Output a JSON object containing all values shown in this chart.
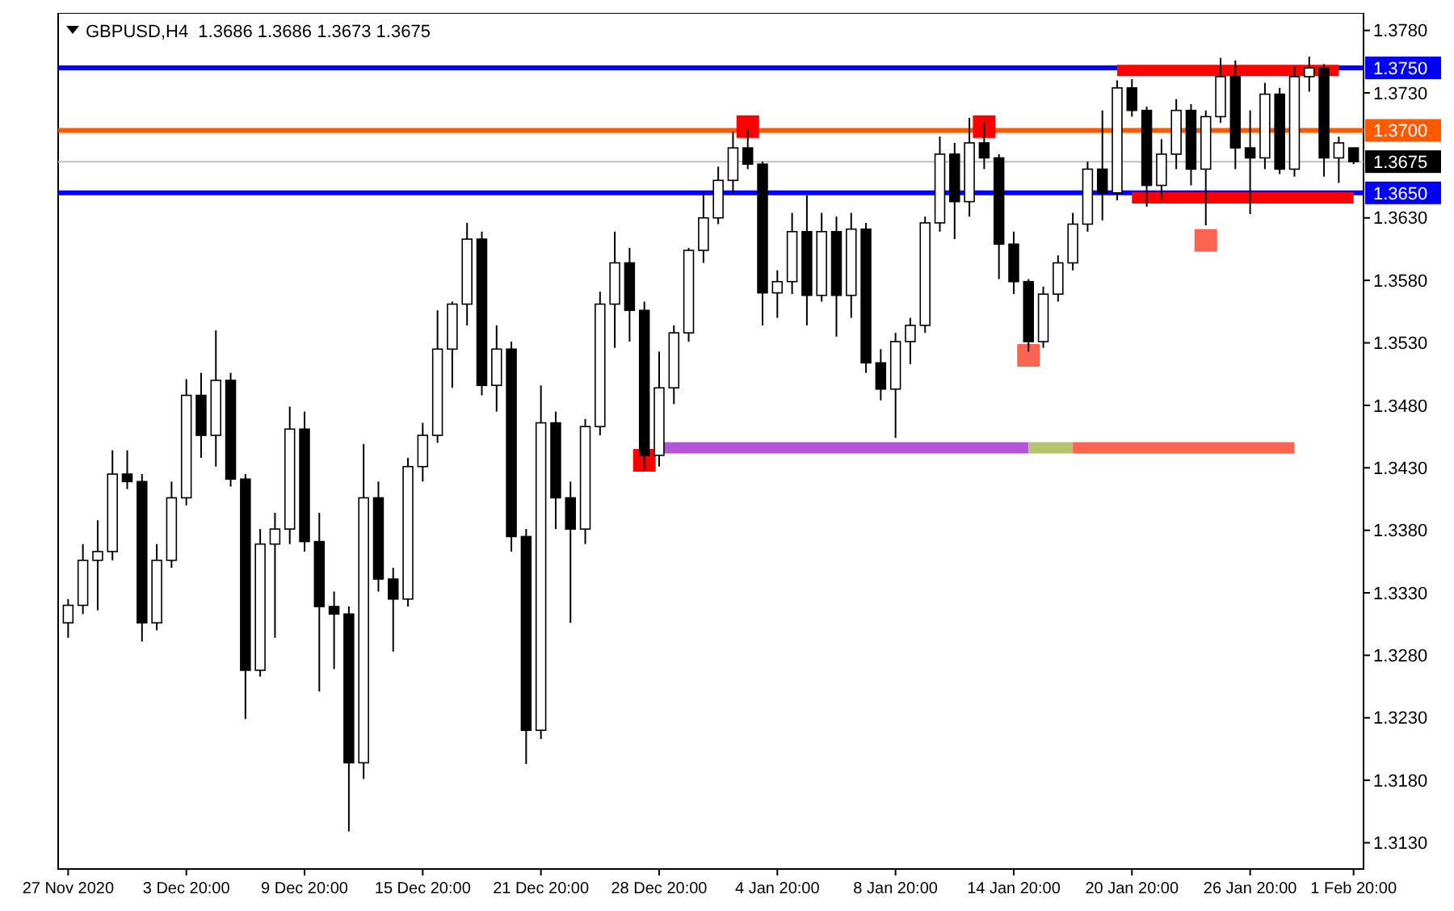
{
  "chart_data": {
    "type": "candlestick",
    "title": "GBPUSD,H4  1.3686 1.3686 1.3673 1.3675",
    "color": "#000000",
    "categories": [
      "27 Nov 2020",
      null,
      null,
      null,
      null,
      null,
      null,
      null,
      "3 Dec 20:00",
      null,
      null,
      null,
      null,
      null,
      null,
      null,
      "9 Dec 20:00",
      null,
      null,
      null,
      null,
      null,
      null,
      null,
      "15 Dec 20:00",
      null,
      null,
      null,
      null,
      null,
      null,
      null,
      "21 Dec 20:00",
      null,
      null,
      null,
      null,
      null,
      null,
      null,
      "28 Dec 20:00",
      null,
      null,
      null,
      null,
      null,
      null,
      null,
      "4 Jan 20:00",
      null,
      null,
      null,
      null,
      null,
      null,
      null,
      "8 Jan 20:00",
      null,
      null,
      null,
      null,
      null,
      null,
      null,
      "14 Jan 20:00",
      null,
      null,
      null,
      null,
      null,
      null,
      null,
      "20 Jan 20:00",
      null,
      null,
      null,
      null,
      null,
      null,
      null,
      "26 Jan 20:00",
      null,
      null,
      null,
      null,
      null,
      null,
      "1 Feb 20:00"
    ],
    "ohlc": [
      [
        1.3306,
        1.3325,
        1.3294,
        1.332
      ],
      [
        1.332,
        1.3369,
        1.3313,
        1.3356
      ],
      [
        1.3356,
        1.3388,
        1.3316,
        1.3363
      ],
      [
        1.3363,
        1.3444,
        1.3356,
        1.3425
      ],
      [
        1.3425,
        1.3444,
        1.3413,
        1.3419
      ],
      [
        1.3419,
        1.3425,
        1.3291,
        1.3306
      ],
      [
        1.3306,
        1.3369,
        1.33,
        1.3356
      ],
      [
        1.3356,
        1.3419,
        1.335,
        1.3406
      ],
      [
        1.3406,
        1.3501,
        1.34,
        1.3488
      ],
      [
        1.3488,
        1.3506,
        1.3438,
        1.3456
      ],
      [
        1.3456,
        1.354,
        1.3431,
        1.35
      ],
      [
        1.35,
        1.3506,
        1.3415,
        1.3421
      ],
      [
        1.3421,
        1.3425,
        1.3229,
        1.3268
      ],
      [
        1.3268,
        1.3381,
        1.3263,
        1.3369
      ],
      [
        1.3369,
        1.3394,
        1.3294,
        1.3381
      ],
      [
        1.3381,
        1.3479,
        1.3369,
        1.3461
      ],
      [
        1.3461,
        1.3475,
        1.3363,
        1.3371
      ],
      [
        1.3371,
        1.3394,
        1.3251,
        1.3319
      ],
      [
        1.3319,
        1.3331,
        1.3269,
        1.3313
      ],
      [
        1.3313,
        1.3319,
        1.3139,
        1.3194
      ],
      [
        1.3194,
        1.3449,
        1.3181,
        1.3406
      ],
      [
        1.3406,
        1.3419,
        1.3331,
        1.3341
      ],
      [
        1.3341,
        1.335,
        1.3283,
        1.3325
      ],
      [
        1.3325,
        1.3438,
        1.3319,
        1.3431
      ],
      [
        1.3431,
        1.3466,
        1.3419,
        1.3456
      ],
      [
        1.3456,
        1.3556,
        1.345,
        1.3525
      ],
      [
        1.3525,
        1.3563,
        1.3494,
        1.3561
      ],
      [
        1.3561,
        1.3626,
        1.3544,
        1.3613
      ],
      [
        1.3613,
        1.3619,
        1.3488,
        1.3496
      ],
      [
        1.3496,
        1.3544,
        1.3475,
        1.3525
      ],
      [
        1.3525,
        1.3531,
        1.3363,
        1.3375
      ],
      [
        1.3375,
        1.3381,
        1.3193,
        1.322
      ],
      [
        1.322,
        1.3496,
        1.3213,
        1.3466
      ],
      [
        1.3466,
        1.3475,
        1.3381,
        1.3406
      ],
      [
        1.3406,
        1.3419,
        1.3306,
        1.3381
      ],
      [
        1.3381,
        1.3469,
        1.3369,
        1.3463
      ],
      [
        1.3463,
        1.3571,
        1.3456,
        1.3561
      ],
      [
        1.3561,
        1.3619,
        1.3526,
        1.3594
      ],
      [
        1.3594,
        1.3606,
        1.3531,
        1.3556
      ],
      [
        1.3556,
        1.3563,
        1.3428,
        1.344
      ],
      [
        1.344,
        1.3523,
        1.3431,
        1.3494
      ],
      [
        1.3494,
        1.3544,
        1.3481,
        1.3538
      ],
      [
        1.3538,
        1.3606,
        1.3531,
        1.3604
      ],
      [
        1.3604,
        1.3651,
        1.3594,
        1.363
      ],
      [
        1.363,
        1.3671,
        1.3625,
        1.366
      ],
      [
        1.366,
        1.3699,
        1.365,
        1.3686
      ],
      [
        1.3686,
        1.3701,
        1.3669,
        1.3673
      ],
      [
        1.3673,
        1.3675,
        1.3544,
        1.357
      ],
      [
        1.357,
        1.3588,
        1.355,
        1.3579
      ],
      [
        1.3579,
        1.3634,
        1.3569,
        1.3619
      ],
      [
        1.3619,
        1.3648,
        1.3544,
        1.3568
      ],
      [
        1.3568,
        1.3634,
        1.3563,
        1.3619
      ],
      [
        1.3619,
        1.3631,
        1.3535,
        1.3568
      ],
      [
        1.3568,
        1.3634,
        1.355,
        1.3621
      ],
      [
        1.3621,
        1.3626,
        1.3506,
        1.3514
      ],
      [
        1.3514,
        1.3525,
        1.3484,
        1.3493
      ],
      [
        1.3493,
        1.3538,
        1.3454,
        1.3531
      ],
      [
        1.3531,
        1.355,
        1.3513,
        1.3544
      ],
      [
        1.3544,
        1.3631,
        1.3538,
        1.3626
      ],
      [
        1.3626,
        1.3695,
        1.3619,
        1.3681
      ],
      [
        1.3681,
        1.369,
        1.3613,
        1.3643
      ],
      [
        1.3643,
        1.371,
        1.3631,
        1.369
      ],
      [
        1.369,
        1.3706,
        1.3669,
        1.3678
      ],
      [
        1.3678,
        1.3681,
        1.3581,
        1.3609
      ],
      [
        1.3609,
        1.3619,
        1.3569,
        1.3579
      ],
      [
        1.3579,
        1.3581,
        1.3523,
        1.3531
      ],
      [
        1.3531,
        1.3575,
        1.3526,
        1.3569
      ],
      [
        1.3569,
        1.36,
        1.3563,
        1.3594
      ],
      [
        1.3594,
        1.3634,
        1.3588,
        1.3625
      ],
      [
        1.3625,
        1.3675,
        1.3619,
        1.3669
      ],
      [
        1.3669,
        1.3716,
        1.3628,
        1.365
      ],
      [
        1.365,
        1.374,
        1.3644,
        1.3734
      ],
      [
        1.3734,
        1.3741,
        1.3711,
        1.3716
      ],
      [
        1.3716,
        1.3719,
        1.3639,
        1.3656
      ],
      [
        1.3656,
        1.3693,
        1.3644,
        1.3681
      ],
      [
        1.3681,
        1.3725,
        1.3669,
        1.3716
      ],
      [
        1.3716,
        1.3721,
        1.3656,
        1.3669
      ],
      [
        1.3669,
        1.3716,
        1.3624,
        1.3711
      ],
      [
        1.3711,
        1.3758,
        1.3706,
        1.3743
      ],
      [
        1.3743,
        1.3756,
        1.3669,
        1.3686
      ],
      [
        1.3686,
        1.3716,
        1.3633,
        1.3678
      ],
      [
        1.3678,
        1.3738,
        1.3669,
        1.3729
      ],
      [
        1.3729,
        1.3734,
        1.3665,
        1.3669
      ],
      [
        1.3669,
        1.3751,
        1.3663,
        1.3743
      ],
      [
        1.3743,
        1.3759,
        1.3731,
        1.375
      ],
      [
        1.375,
        1.3753,
        1.3663,
        1.3678
      ],
      [
        1.3678,
        1.3695,
        1.3658,
        1.369
      ],
      [
        1.3686,
        1.3686,
        1.3673,
        1.3675
      ]
    ],
    "series": [
      {
        "type": "line",
        "color": "#ff0000",
        "values": [
          null,
          null,
          null,
          null,
          null,
          null,
          null,
          null,
          null,
          null,
          null,
          null,
          null,
          null,
          null,
          null,
          null,
          null,
          null,
          null,
          null,
          null,
          null,
          null,
          null,
          null,
          null,
          null,
          null,
          null,
          null,
          null,
          null,
          null,
          null,
          null,
          null,
          null,
          null,
          null,
          null,
          null,
          null,
          null,
          null,
          null,
          null,
          null,
          null,
          null,
          null,
          null,
          null,
          null,
          null,
          null,
          null,
          null,
          null,
          null,
          null,
          null,
          null,
          null,
          null,
          null,
          null,
          null,
          null,
          null,
          null,
          1.3748,
          1.3748,
          1.3748,
          1.3748,
          1.3748,
          1.3748,
          1.3748,
          1.3748,
          1.3748,
          1.3748,
          1.3748,
          1.3748,
          1.3748,
          1.3748,
          1.3748,
          1.3748,
          null
        ]
      },
      {
        "type": "line",
        "color": "#ff0000",
        "values": [
          null,
          null,
          null,
          null,
          null,
          null,
          null,
          null,
          null,
          null,
          null,
          null,
          null,
          null,
          null,
          null,
          null,
          null,
          null,
          null,
          null,
          null,
          null,
          null,
          null,
          null,
          null,
          null,
          null,
          null,
          null,
          null,
          null,
          null,
          null,
          null,
          null,
          null,
          null,
          null,
          null,
          null,
          null,
          null,
          null,
          null,
          null,
          null,
          null,
          null,
          null,
          null,
          null,
          null,
          null,
          null,
          null,
          null,
          null,
          null,
          null,
          null,
          null,
          null,
          null,
          null,
          null,
          null,
          null,
          null,
          null,
          null,
          1.3646,
          1.3646,
          1.3646,
          1.3646,
          1.3646,
          1.3646,
          1.3646,
          1.3646,
          1.3646,
          1.3646,
          1.3646,
          1.3646,
          1.3646,
          1.3646,
          1.3646,
          1.3646
        ]
      },
      {
        "type": "line",
        "color": "#b455d8",
        "values": [
          null,
          null,
          null,
          null,
          null,
          null,
          null,
          null,
          null,
          null,
          null,
          null,
          null,
          null,
          null,
          null,
          null,
          null,
          null,
          null,
          null,
          null,
          null,
          null,
          null,
          null,
          null,
          null,
          null,
          null,
          null,
          null,
          null,
          null,
          null,
          null,
          null,
          null,
          null,
          null,
          1.3446,
          1.3446,
          1.3446,
          1.3446,
          1.3446,
          1.3446,
          1.3446,
          1.3446,
          1.3446,
          1.3446,
          1.3446,
          1.3446,
          1.3446,
          1.3446,
          1.3446,
          1.3446,
          1.3446,
          1.3446,
          1.3446,
          1.3446,
          1.3446,
          1.3446,
          1.3446,
          1.3446,
          1.3446,
          1.3446,
          null,
          null,
          null,
          null,
          null,
          null,
          null,
          null,
          null,
          null,
          null,
          null,
          null,
          null,
          null,
          null,
          null,
          null,
          null,
          null,
          null,
          null
        ]
      },
      {
        "type": "line",
        "color": "#b4c46e",
        "values": [
          null,
          null,
          null,
          null,
          null,
          null,
          null,
          null,
          null,
          null,
          null,
          null,
          null,
          null,
          null,
          null,
          null,
          null,
          null,
          null,
          null,
          null,
          null,
          null,
          null,
          null,
          null,
          null,
          null,
          null,
          null,
          null,
          null,
          null,
          null,
          null,
          null,
          null,
          null,
          null,
          null,
          null,
          null,
          null,
          null,
          null,
          null,
          null,
          null,
          null,
          null,
          null,
          null,
          null,
          null,
          null,
          null,
          null,
          null,
          null,
          null,
          null,
          null,
          null,
          null,
          1.3446,
          1.3446,
          1.3446,
          1.3446,
          null,
          null,
          null,
          null,
          null,
          null,
          null,
          null,
          null,
          null,
          null,
          null,
          null,
          null,
          null,
          null,
          null,
          null,
          null
        ]
      },
      {
        "type": "line",
        "color": "#fa6450",
        "values": [
          null,
          null,
          null,
          null,
          null,
          null,
          null,
          null,
          null,
          null,
          null,
          null,
          null,
          null,
          null,
          null,
          null,
          null,
          null,
          null,
          null,
          null,
          null,
          null,
          null,
          null,
          null,
          null,
          null,
          null,
          null,
          null,
          null,
          null,
          null,
          null,
          null,
          null,
          null,
          null,
          null,
          null,
          null,
          null,
          null,
          null,
          null,
          null,
          null,
          null,
          null,
          null,
          null,
          null,
          null,
          null,
          null,
          null,
          null,
          null,
          null,
          null,
          null,
          null,
          null,
          null,
          null,
          null,
          1.3446,
          1.3446,
          1.3446,
          1.3446,
          1.3446,
          1.3446,
          1.3446,
          1.3446,
          1.3446,
          1.3446,
          1.3446,
          1.3446,
          1.3446,
          1.3446,
          1.3446,
          1.3446,
          null,
          null,
          null,
          null
        ]
      },
      {
        "type": "scatter",
        "marker": "square",
        "color": "#ff0000",
        "values": [
          null,
          null,
          null,
          null,
          null,
          null,
          null,
          null,
          null,
          null,
          null,
          null,
          null,
          null,
          null,
          null,
          null,
          null,
          null,
          null,
          null,
          null,
          null,
          null,
          null,
          null,
          null,
          null,
          null,
          null,
          null,
          null,
          null,
          null,
          null,
          null,
          null,
          null,
          null,
          1.3436,
          null,
          null,
          null,
          null,
          null,
          null,
          1.3703,
          null,
          null,
          null,
          null,
          null,
          null,
          null,
          null,
          null,
          null,
          null,
          null,
          null,
          null,
          null,
          1.3703,
          null,
          null,
          null,
          null,
          null,
          null,
          null,
          null,
          null,
          null,
          null,
          null,
          null,
          null,
          null,
          null,
          null,
          null,
          null,
          null,
          null,
          null,
          null,
          null,
          null
        ]
      },
      {
        "type": "scatter",
        "marker": "square",
        "color": "#fa6450",
        "values": [
          null,
          null,
          null,
          null,
          null,
          null,
          null,
          null,
          null,
          null,
          null,
          null,
          null,
          null,
          null,
          null,
          null,
          null,
          null,
          null,
          null,
          null,
          null,
          null,
          null,
          null,
          null,
          null,
          null,
          null,
          null,
          null,
          null,
          null,
          null,
          null,
          null,
          null,
          null,
          null,
          null,
          null,
          null,
          null,
          null,
          null,
          null,
          null,
          null,
          null,
          null,
          null,
          null,
          null,
          null,
          null,
          null,
          null,
          null,
          null,
          null,
          null,
          null,
          null,
          null,
          1.352,
          null,
          null,
          null,
          null,
          null,
          null,
          null,
          null,
          null,
          null,
          null,
          1.3612,
          null,
          null,
          null,
          null,
          null,
          null,
          null,
          null,
          null,
          null
        ]
      }
    ],
    "ylim": [
      1.3109,
      1.3794
    ],
    "yticks": [
      {
        "value": 1.378,
        "label": "1.3780"
      },
      {
        "value": 1.373,
        "label": "1.3730"
      },
      {
        "value": 1.363,
        "label": "1.3630"
      },
      {
        "value": 1.358,
        "label": "1.3580"
      },
      {
        "value": 1.353,
        "label": "1.3530"
      },
      {
        "value": 1.348,
        "label": "1.3480"
      },
      {
        "value": 1.343,
        "label": "1.3430"
      },
      {
        "value": 1.338,
        "label": "1.3380"
      },
      {
        "value": 1.333,
        "label": "1.3330"
      },
      {
        "value": 1.328,
        "label": "1.3280"
      },
      {
        "value": 1.323,
        "label": "1.3230"
      },
      {
        "value": 1.318,
        "label": "1.3180"
      },
      {
        "value": 1.313,
        "label": "1.3130"
      }
    ],
    "ref_lines": [
      {
        "axis": "y",
        "value": 1.375,
        "label": "1.3750",
        "color": "#0000ff"
      },
      {
        "axis": "y",
        "value": 1.37,
        "label": "1.3700",
        "color": "#ff5a00"
      },
      {
        "axis": "y",
        "value": 1.3675,
        "label": "1.3675",
        "color": "#c0c0c0"
      },
      {
        "axis": "y",
        "value": 1.365,
        "label": "1.3650",
        "color": "#0000ff"
      }
    ]
  }
}
